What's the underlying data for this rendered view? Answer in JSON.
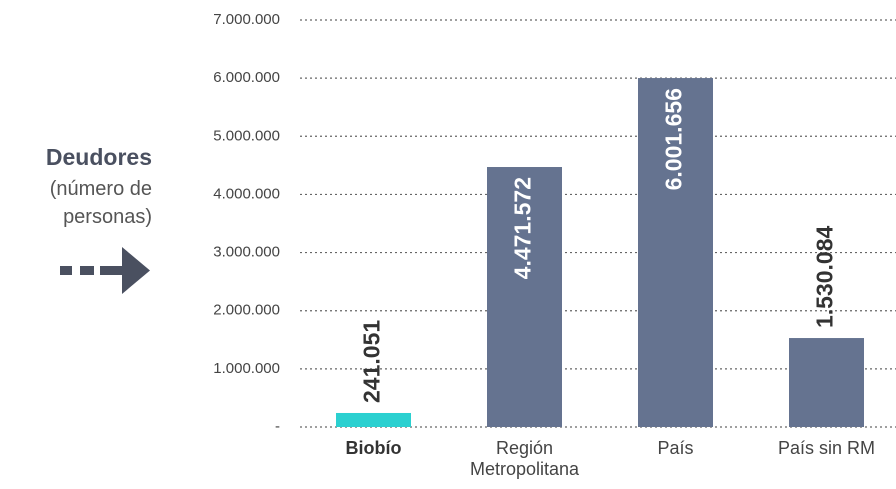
{
  "chart_data": {
    "type": "bar",
    "y_label_title": "Deudores",
    "y_label_sub": [
      "(número de",
      "personas)"
    ],
    "categories": [
      "Biobío",
      "Región Metropolitana",
      "País",
      "País sin RM"
    ],
    "values": [
      241051,
      4471572,
      6001656,
      1530084
    ],
    "value_labels": [
      "241.051",
      "4.471.572",
      "6.001.656",
      "1.530.084"
    ],
    "colors": [
      "#2bd0d0",
      "#657390",
      "#657390",
      "#657390"
    ],
    "highlight_index": 0,
    "ylim": [
      0,
      7000000
    ],
    "yticks": [
      {
        "value": 0,
        "label": "-"
      },
      {
        "value": 1000000,
        "label": "1.000.000"
      },
      {
        "value": 2000000,
        "label": "2.000.000"
      },
      {
        "value": 3000000,
        "label": "3.000.000"
      },
      {
        "value": 4000000,
        "label": "4.000.000"
      },
      {
        "value": 5000000,
        "label": "5.000.000"
      },
      {
        "value": 6000000,
        "label": "6.000.000"
      },
      {
        "value": 7000000,
        "label": "7.000.000"
      }
    ],
    "grid": true
  }
}
